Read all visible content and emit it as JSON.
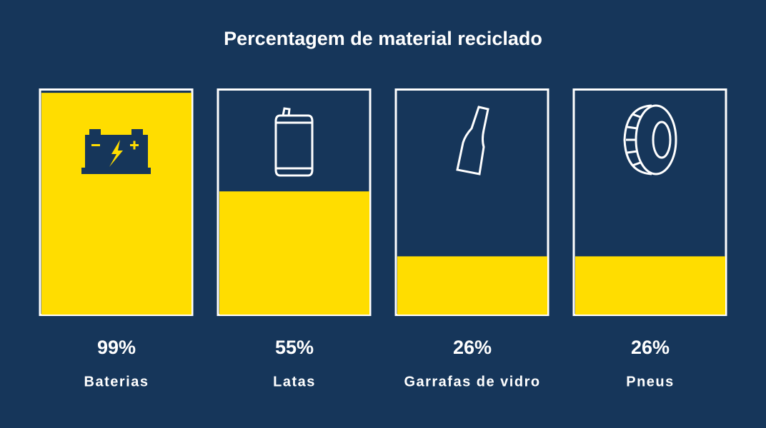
{
  "chart_data": {
    "type": "fill-bar",
    "title": "Percentagem de material reciclado",
    "categories": [
      "Baterias",
      "Latas",
      "Garrafas de vidro",
      "Pneus"
    ],
    "values": [
      99,
      55,
      26,
      26
    ],
    "value_labels": [
      "99%",
      "55%",
      "26%",
      "26%"
    ],
    "color": "#ffdd00",
    "ylim": [
      0,
      100
    ]
  }
}
